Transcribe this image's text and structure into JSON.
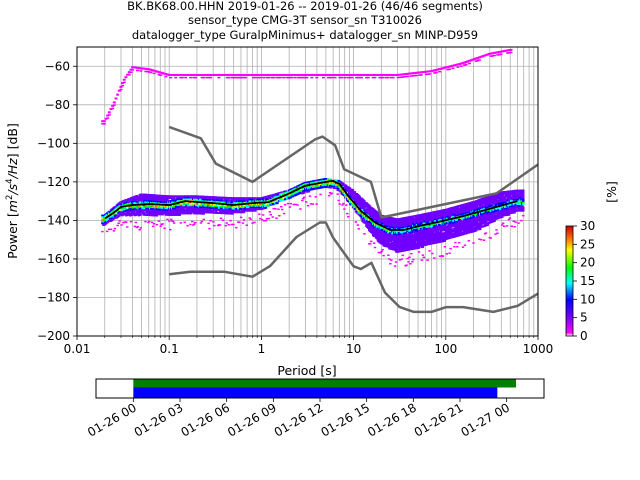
{
  "chart_data": {
    "type": "heatmap",
    "title_lines": [
      "BK.BK68.00.HHN   2019-01-26 -- 2019-01-26  (46/46 segments)",
      "sensor_type CMG-3T sensor_sn T310026",
      "datalogger_type GuralpMinimus+ datalogger_sn MINP-D959"
    ],
    "xlabel": "Period [s]",
    "ylabel_parts": [
      "Power [",
      "m",
      "2",
      "/s",
      "4",
      "/Hz",
      "] [dB]"
    ],
    "x_scale": "log",
    "xlim": [
      0.01,
      1000
    ],
    "ylim": [
      -200,
      -50
    ],
    "x_ticks": [
      {
        "value": 0.01,
        "label": "0.01"
      },
      {
        "value": 0.1,
        "label": "0.1"
      },
      {
        "value": 1,
        "label": "1"
      },
      {
        "value": 10,
        "label": "10"
      },
      {
        "value": 100,
        "label": "100"
      },
      {
        "value": 1000,
        "label": "1000"
      }
    ],
    "y_ticks": [
      {
        "value": -60,
        "label": "−60"
      },
      {
        "value": -80,
        "label": "−80"
      },
      {
        "value": -100,
        "label": "−100"
      },
      {
        "value": -120,
        "label": "−120"
      },
      {
        "value": -140,
        "label": "−140"
      },
      {
        "value": -160,
        "label": "−160"
      },
      {
        "value": -180,
        "label": "−180"
      },
      {
        "value": -200,
        "label": "−200"
      }
    ],
    "grid": true,
    "nhnm": [
      [
        0.1,
        -91.5
      ],
      [
        0.22,
        -97.4
      ],
      [
        0.32,
        -110.5
      ],
      [
        0.8,
        -120
      ],
      [
        3.8,
        -98
      ],
      [
        4.6,
        -96.5
      ],
      [
        6.3,
        -101
      ],
      [
        7.9,
        -113.5
      ],
      [
        15.4,
        -120
      ],
      [
        20,
        -138.5
      ],
      [
        354.8,
        -126
      ],
      [
        1000,
        -111
      ]
    ],
    "nlnm": [
      [
        0.1,
        -168
      ],
      [
        0.17,
        -166.7
      ],
      [
        0.4,
        -166.7
      ],
      [
        0.8,
        -169.2
      ],
      [
        1.24,
        -163.7
      ],
      [
        2.4,
        -148.6
      ],
      [
        4.3,
        -141.1
      ],
      [
        5,
        -141.1
      ],
      [
        6,
        -149
      ],
      [
        10,
        -163.8
      ],
      [
        12,
        -165.2
      ],
      [
        15.6,
        -162
      ],
      [
        21.9,
        -177.5
      ],
      [
        31.6,
        -185
      ],
      [
        45,
        -187.5
      ],
      [
        70,
        -187.5
      ],
      [
        101,
        -185
      ],
      [
        154,
        -185
      ],
      [
        328,
        -187.5
      ],
      [
        600,
        -184.4
      ],
      [
        1000,
        -178
      ]
    ],
    "median": [
      [
        0.02,
        -139
      ],
      [
        0.025,
        -136
      ],
      [
        0.03,
        -133
      ],
      [
        0.04,
        -132
      ],
      [
        0.06,
        -131.5
      ],
      [
        0.1,
        -132
      ],
      [
        0.15,
        -130
      ],
      [
        0.3,
        -131
      ],
      [
        0.5,
        -132
      ],
      [
        0.8,
        -131
      ],
      [
        1.2,
        -130.5
      ],
      [
        2,
        -126
      ],
      [
        3,
        -122
      ],
      [
        5,
        -120
      ],
      [
        6,
        -119.5
      ],
      [
        7,
        -121
      ],
      [
        9,
        -128
      ],
      [
        12,
        -135
      ],
      [
        17,
        -141
      ],
      [
        25,
        -145
      ],
      [
        35,
        -145
      ],
      [
        50,
        -143
      ],
      [
        80,
        -141
      ],
      [
        150,
        -138
      ],
      [
        300,
        -134
      ],
      [
        600,
        -130
      ]
    ],
    "noise_lower_band": [
      [
        0.02,
        -142
      ],
      [
        0.03,
        -137
      ],
      [
        0.05,
        -137
      ],
      [
        0.1,
        -137
      ],
      [
        0.2,
        -136
      ],
      [
        0.5,
        -136
      ],
      [
        1,
        -134
      ],
      [
        2,
        -128
      ],
      [
        3,
        -125
      ],
      [
        5,
        -122
      ],
      [
        7,
        -124
      ],
      [
        10,
        -133
      ],
      [
        15,
        -145
      ],
      [
        20,
        -152
      ],
      [
        30,
        -156
      ],
      [
        50,
        -154
      ],
      [
        100,
        -150
      ],
      [
        200,
        -146
      ],
      [
        400,
        -138
      ],
      [
        600,
        -135
      ]
    ],
    "noise_upper_band": [
      [
        0.02,
        -137
      ],
      [
        0.03,
        -130
      ],
      [
        0.05,
        -126
      ],
      [
        0.1,
        -127
      ],
      [
        0.2,
        -127
      ],
      [
        0.5,
        -128
      ],
      [
        1,
        -128
      ],
      [
        2,
        -124
      ],
      [
        3,
        -120
      ],
      [
        5,
        -118
      ],
      [
        7,
        -119
      ],
      [
        10,
        -124
      ],
      [
        15,
        -132
      ],
      [
        20,
        -137
      ],
      [
        30,
        -139
      ],
      [
        50,
        -137
      ],
      [
        100,
        -134
      ],
      [
        200,
        -130
      ],
      [
        400,
        -125
      ],
      [
        600,
        -124
      ]
    ],
    "glitch_band": [
      [
        0.02,
        -88
      ],
      [
        0.025,
        -79
      ],
      [
        0.032,
        -67
      ],
      [
        0.04,
        -60
      ],
      [
        0.06,
        -61
      ],
      [
        0.1,
        -64
      ],
      [
        0.3,
        -64
      ],
      [
        1,
        -64
      ],
      [
        3,
        -64
      ],
      [
        10,
        -64
      ],
      [
        30,
        -64
      ],
      [
        70,
        -62
      ],
      [
        150,
        -58
      ],
      [
        300,
        -53
      ],
      [
        500,
        -51
      ]
    ],
    "colorbar": {
      "label": "[%]",
      "min": 0,
      "max": 30,
      "ticks": [
        {
          "value": 0,
          "label": "0"
        },
        {
          "value": 5,
          "label": "5"
        },
        {
          "value": 10,
          "label": "10"
        },
        {
          "value": 15,
          "label": "15"
        },
        {
          "value": 20,
          "label": "20"
        },
        {
          "value": 25,
          "label": "25"
        },
        {
          "value": 30,
          "label": "30"
        }
      ]
    },
    "coverage": {
      "x_ticks": [
        "01-26 00",
        "01-26 03",
        "01-26 06",
        "01-26 09",
        "01-26 12",
        "01-26 15",
        "01-26 18",
        "01-26 21",
        "01-27 00"
      ],
      "start_hour": -2.4,
      "end_hour": 26.4,
      "green_bar": [
        0,
        24.6
      ],
      "blue_bar": [
        0,
        23.4
      ],
      "green_color": "#008000",
      "blue_color": "#0000ff"
    }
  },
  "colors": {
    "noise_model": "#666666",
    "median": "#000000",
    "grid": "#b0b0b0"
  }
}
